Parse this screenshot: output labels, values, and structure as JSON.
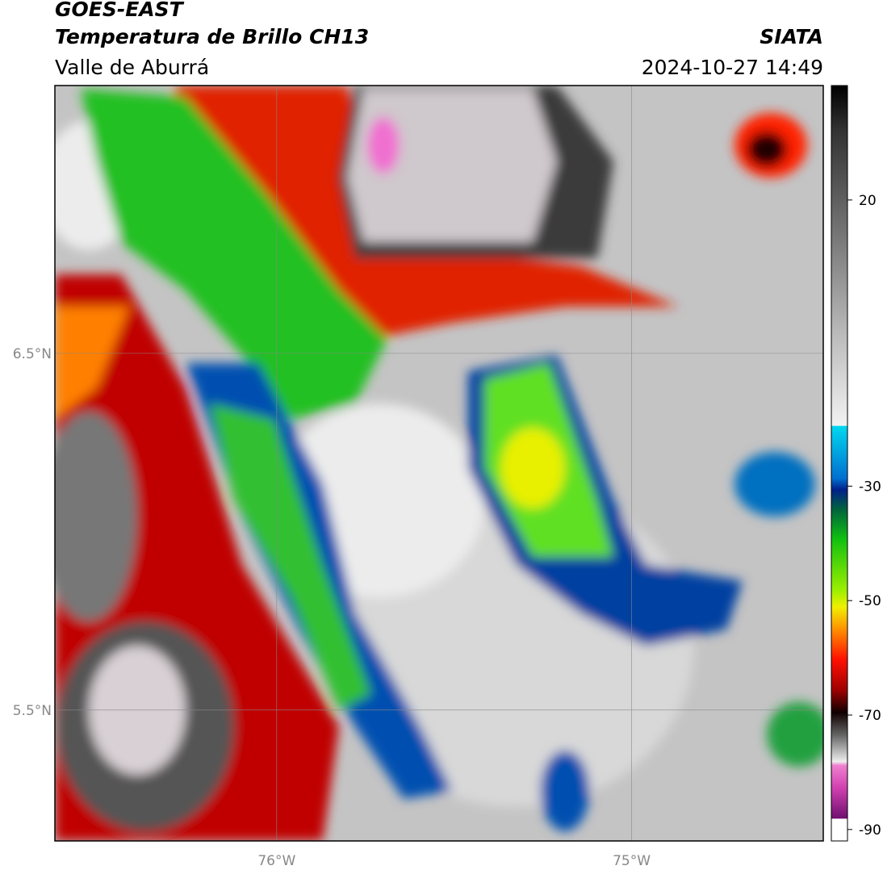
{
  "header": {
    "title": "GOES-EAST",
    "subtitle": "Temperatura de Brillo CH13",
    "region": "Valle de Aburrá",
    "source": "SIATA",
    "datetime": "2024-10-27 14:49"
  },
  "map": {
    "xlim": [
      -76.625,
      -74.46
    ],
    "ylim": [
      5.133,
      7.251
    ],
    "xticks": [
      {
        "value": -76,
        "label": "76°W"
      },
      {
        "value": -75,
        "label": "75°W"
      }
    ],
    "yticks": [
      {
        "value": 6.5,
        "label": "6.5°N"
      },
      {
        "value": 5.5,
        "label": "5.5°N"
      }
    ],
    "grid": true
  },
  "colorbar": {
    "lim": [
      -92,
      40
    ],
    "ticks": [
      20,
      -30,
      -50,
      -70,
      -90
    ]
  }
}
